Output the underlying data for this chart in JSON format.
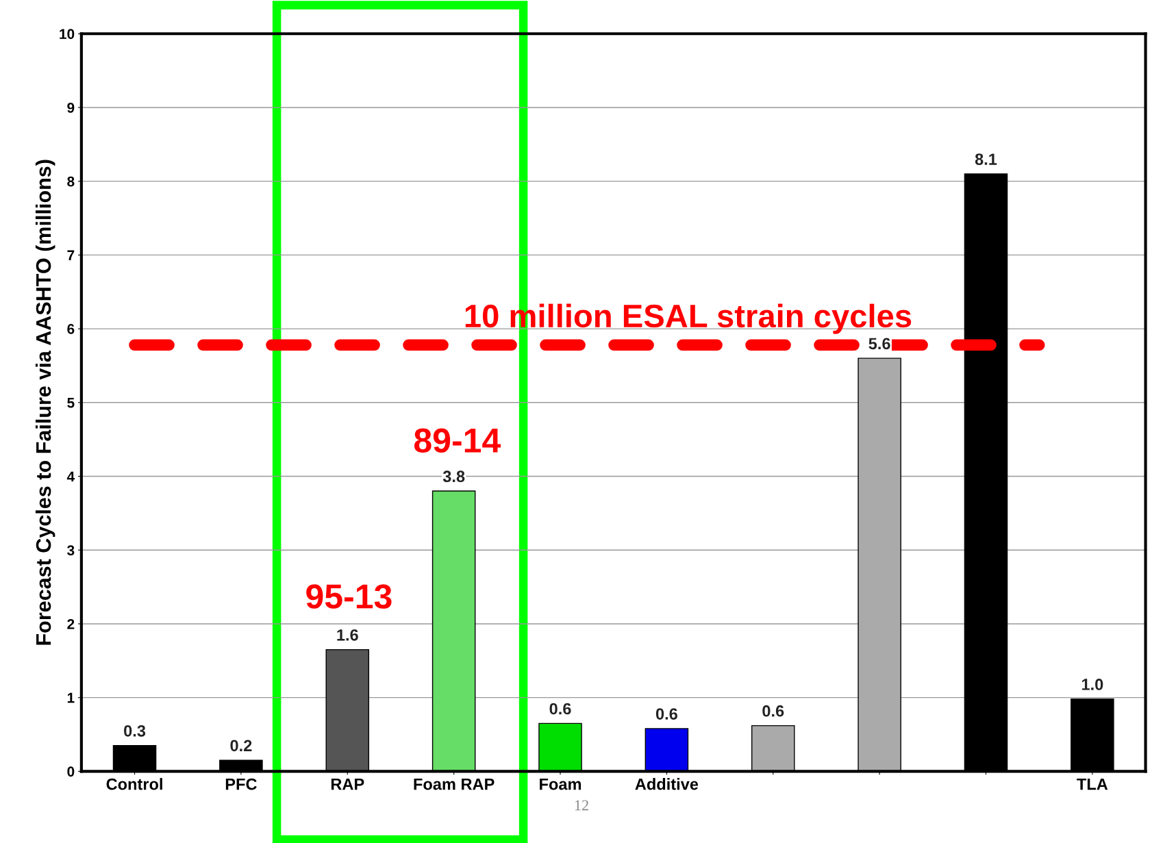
{
  "chart_data": {
    "type": "bar",
    "ylabel": "Forecast Cycles to Failure via AASHTO (millions)",
    "categories": [
      "Control",
      "PFC",
      "RAP",
      "Foam RAP",
      "Foam",
      "Additive",
      null,
      null,
      null,
      "TLA"
    ],
    "values": [
      0.35,
      0.15,
      1.65,
      3.8,
      0.65,
      0.58,
      0.62,
      5.6,
      8.1,
      0.98
    ],
    "colors": [
      "#000000",
      "#000000",
      "#555555",
      "#66dd66",
      "#00dd00",
      "#0000ee",
      "#aaaaaa",
      "#aaaaaa",
      "#000000",
      "#000000"
    ],
    "value_labels": [
      "0.3",
      "0.2",
      "1.6",
      "3.8",
      "0.6",
      "0.6",
      "0.6",
      "5.6",
      "8.1",
      "1.0"
    ],
    "ylim": [
      0,
      10
    ],
    "yticks": [
      0,
      1,
      2,
      3,
      4,
      5,
      6,
      7,
      8,
      9,
      10
    ],
    "grid": "y",
    "ref_lines": [
      {
        "axis": "y",
        "value": 5.78,
        "label": "10 million ESAL strain cycles",
        "color": "#ff0000",
        "line_style": "dashed"
      }
    ],
    "annotations": [
      "95-13",
      "89-14",
      "12"
    ]
  }
}
